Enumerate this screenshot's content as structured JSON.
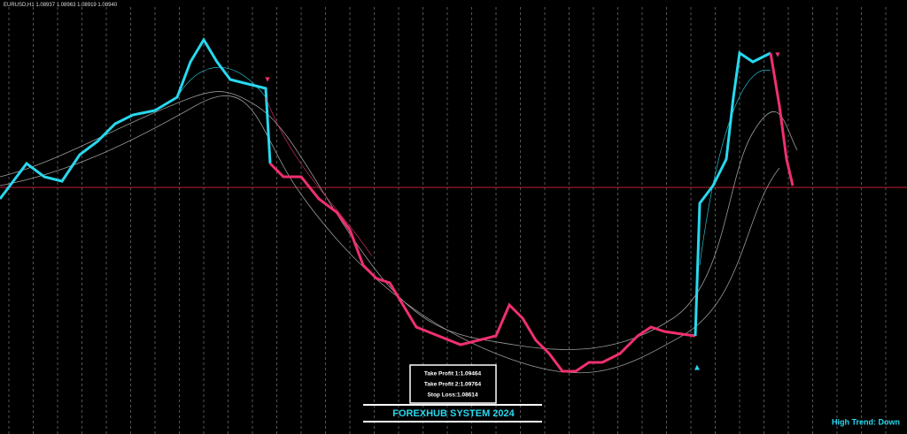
{
  "header": {
    "symbol": "EURUSD,H1",
    "quote": "1.08937 1.08963 1.08919 1.08940"
  },
  "panel": {
    "lines": [
      "Take Profit 1:1.09464",
      "Take Profit 2:1.09764",
      "Stop Loss:1.08614"
    ]
  },
  "banner": "FOREXHUB SYSTEM 2024",
  "status": "High Trend: Down"
}
